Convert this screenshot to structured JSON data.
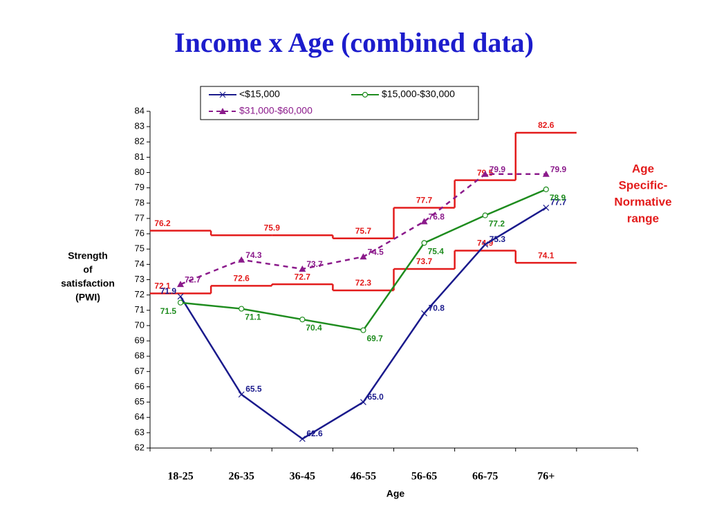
{
  "chart_data": {
    "type": "line",
    "title": "Income x Age (combined data)",
    "xlabel": "Age",
    "ylabel": [
      "Strength",
      "of",
      "satisfaction",
      "(PWI)"
    ],
    "annotation": [
      "Age",
      "Specific-",
      "Normative",
      "range"
    ],
    "categories": [
      "18-25",
      "26-35",
      "36-45",
      "46-55",
      "56-65",
      "66-75",
      "76+"
    ],
    "ylim": [
      62,
      84
    ],
    "yticks": [
      62,
      63,
      64,
      65,
      66,
      67,
      68,
      69,
      70,
      71,
      72,
      73,
      74,
      75,
      76,
      77,
      78,
      79,
      80,
      81,
      82,
      83,
      84
    ],
    "series": [
      {
        "name": "<$15,000",
        "color": "#1a1a8c",
        "marker": "x",
        "values": [
          71.9,
          65.5,
          62.6,
          65.0,
          70.8,
          75.3,
          77.7
        ],
        "value_labels": [
          "71.9",
          "65.5",
          "62.6",
          "65.0",
          "70.8",
          "75.3",
          "77.7"
        ]
      },
      {
        "name": "$15,000-$30,000",
        "color": "#1e8c1e",
        "marker": "circle",
        "values": [
          71.5,
          71.1,
          70.4,
          69.7,
          75.4,
          77.2,
          78.9
        ]
      },
      {
        "name": "$31,000-$60,000",
        "color": "#8b1a8b",
        "marker": "triangle",
        "dashed": true,
        "values": [
          72.7,
          74.3,
          73.7,
          74.5,
          76.8,
          79.9,
          79.9
        ]
      }
    ],
    "normative_range": {
      "color": "#e31b1b",
      "upper": [
        76.2,
        75.9,
        75.9,
        75.7,
        77.7,
        79.5,
        82.6
      ],
      "lower": [
        72.1,
        72.6,
        72.7,
        72.3,
        73.7,
        74.9,
        74.1
      ]
    }
  }
}
